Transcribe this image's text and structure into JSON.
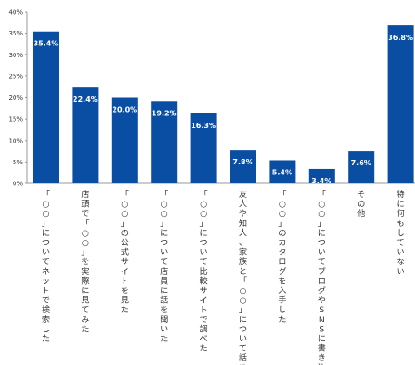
{
  "chart_data": {
    "type": "bar",
    "categories": [
      "「○○」についてネットで検索した",
      "店頭で「○○」を実際に見てみた",
      "「○○」の公式サイトを見た",
      "「○○」について店員に話を聞いた",
      "「○○」について比較サイトで調べた",
      "友人や知人、家族と「○○」について話をした",
      "「○○」のカタログを入手した",
      "「○○」についてブログやSNSに書き込みをした",
      "その他",
      "特に何もしていない"
    ],
    "values": [
      35.4,
      22.4,
      20.0,
      19.2,
      16.3,
      7.8,
      5.4,
      3.4,
      7.6,
      36.8
    ],
    "value_labels": [
      "35.4%",
      "22.4%",
      "20.0%",
      "19.2%",
      "16.3%",
      "7.8%",
      "5.4%",
      "3.4%",
      "7.6%",
      "36.8%"
    ],
    "yticks": [
      0,
      5,
      10,
      15,
      20,
      25,
      30,
      35,
      40
    ],
    "ytick_labels": [
      "0%",
      "5%",
      "10%",
      "15%",
      "20%",
      "25%",
      "30%",
      "35%",
      "40%"
    ],
    "ylim": [
      0,
      40
    ],
    "title": "",
    "xlabel": "",
    "ylabel": "",
    "grid": false,
    "bar_color": "#0a4ea3",
    "axis_color": "#999999"
  }
}
